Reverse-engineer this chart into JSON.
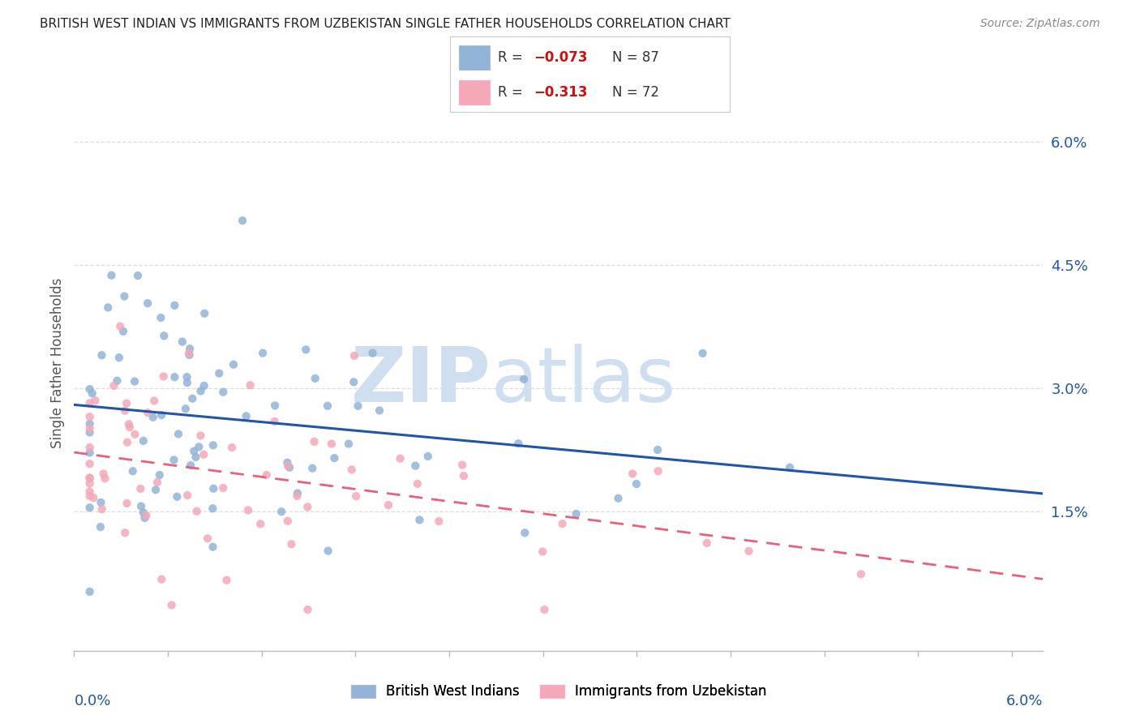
{
  "title": "BRITISH WEST INDIAN VS IMMIGRANTS FROM UZBEKISTAN SINGLE FATHER HOUSEHOLDS CORRELATION CHART",
  "source": "Source: ZipAtlas.com",
  "ylabel": "Single Father Households",
  "ylabel_right_ticks": [
    "6.0%",
    "4.5%",
    "3.0%",
    "1.5%"
  ],
  "ylabel_right_vals": [
    0.06,
    0.045,
    0.03,
    0.015
  ],
  "xlim": [
    0.0,
    0.062
  ],
  "ylim": [
    -0.002,
    0.068
  ],
  "blue_color": "#92B4D7",
  "pink_color": "#F4A8B8",
  "blue_line_color": "#2255AA",
  "pink_line_color": "#E8607A",
  "background_color": "#FFFFFF",
  "grid_color": "#DDDDDD",
  "title_color": "#222222",
  "watermark_color": "#D0DFF0",
  "blue_R": -0.073,
  "blue_N": 87,
  "pink_R": -0.313,
  "pink_N": 72
}
